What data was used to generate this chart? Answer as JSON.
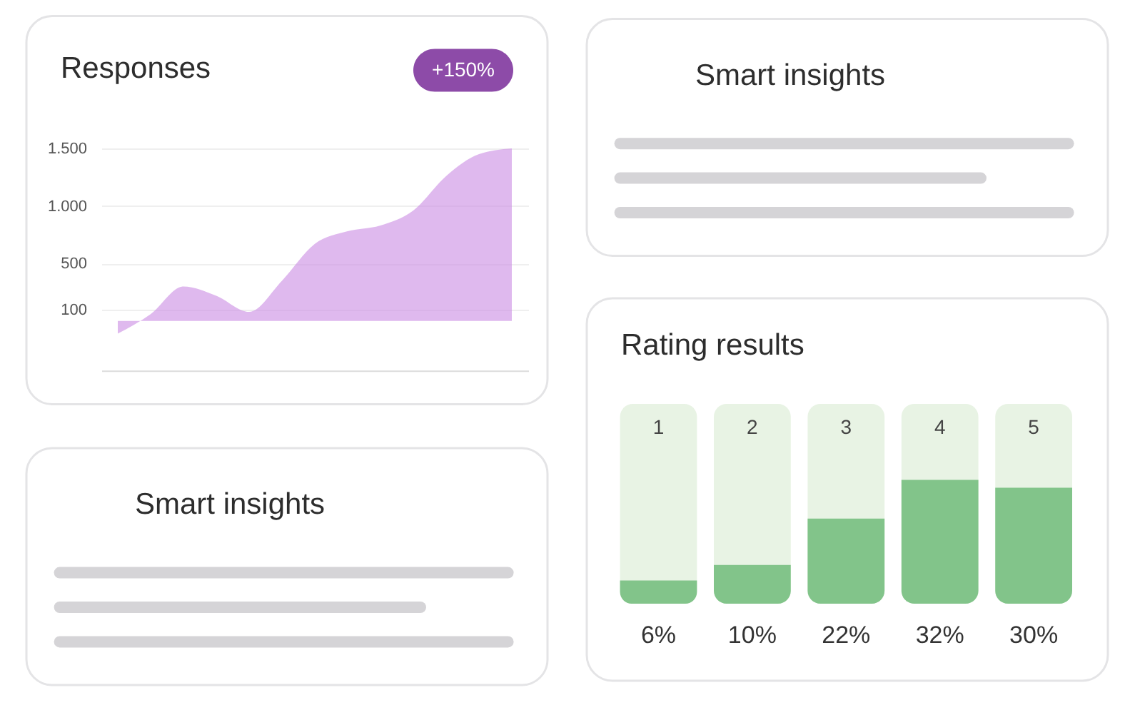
{
  "chart_data": [
    {
      "type": "area",
      "title": "Responses",
      "categories": [
        null,
        null,
        null,
        null,
        null,
        null,
        null,
        null,
        null,
        null,
        null,
        null,
        null
      ],
      "series": [
        {
          "color": "#c98ae2",
          "values": [
            -110,
            60,
            300,
            220,
            80,
            350,
            670,
            780,
            830,
            960,
            1260,
            1450,
            1500
          ]
        }
      ],
      "ylim": [
        -430,
        1500
      ],
      "yticks": [
        100,
        500,
        {
          "value": 1000,
          "label": "1.000"
        },
        {
          "value": 1500,
          "label": "1.500"
        }
      ],
      "grid": "y",
      "tick_labels": "y",
      "annotations": [
        "+150%"
      ]
    },
    {
      "type": "other",
      "title": "Smart insights"
    },
    {
      "type": "other",
      "title": "Smart insights"
    },
    {
      "type": "bar",
      "title": "Rating results",
      "categories": [
        "1",
        "2",
        "3",
        "4",
        "5"
      ],
      "values": [
        6,
        10,
        22,
        32,
        30
      ],
      "color": "#82c48a",
      "value_labels": [
        "6%",
        "10%",
        "22%",
        "32%",
        "30%"
      ],
      "tick_labels": "x"
    }
  ]
}
